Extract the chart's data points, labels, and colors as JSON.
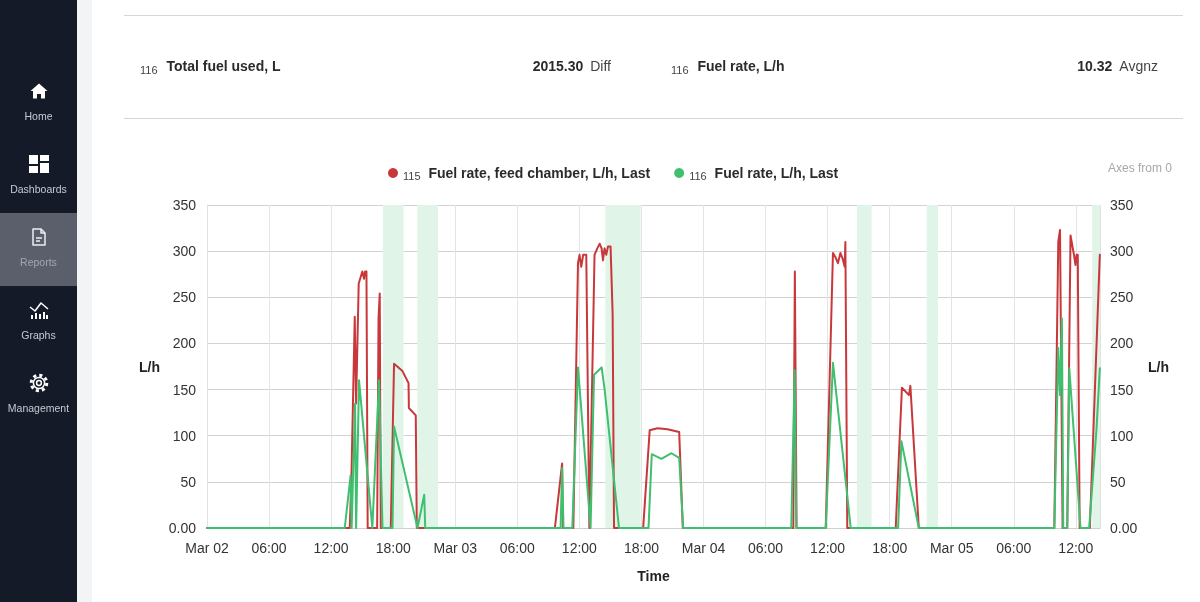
{
  "chart_data": [
    {
      "type": "other",
      "annotations": [
        "Home",
        "Dashboards",
        "Reports",
        "Graphs",
        "Management"
      ]
    },
    {
      "type": "other",
      "annotations": [
        "$_{116}$ Total fuel used, L",
        "2015.30",
        "Diff",
        "$_{116}$ Fuel rate, L/h",
        "10.32",
        "Avgnz"
      ]
    },
    {
      "type": "line",
      "xlabel": "Time",
      "ylabel": "L/h",
      "y2label": "L/h",
      "annotations": [
        "Axes from 0"
      ],
      "xlim": [
        "--03-02T00:00",
        "--03-05T14:20"
      ],
      "xticks": [
        {
          "value": "--03-02T00:00",
          "label": "Mar 02"
        },
        {
          "value": "--03-02T06:00",
          "label": "06:00"
        },
        {
          "value": "--03-02T12:00",
          "label": "12:00"
        },
        {
          "value": "--03-02T18:00",
          "label": "18:00"
        },
        {
          "value": "--03-03T00:00",
          "label": "Mar 03"
        },
        {
          "value": "--03-03T06:00",
          "label": "06:00"
        },
        {
          "value": "--03-03T12:00",
          "label": "12:00"
        },
        {
          "value": "--03-03T18:00",
          "label": "18:00"
        },
        {
          "value": "--03-04T00:00",
          "label": "Mar 04"
        },
        {
          "value": "--03-04T06:00",
          "label": "06:00"
        },
        {
          "value": "--03-04T12:00",
          "label": "12:00"
        },
        {
          "value": "--03-04T18:00",
          "label": "18:00"
        },
        {
          "value": "--03-05T00:00",
          "label": "Mar 05"
        },
        {
          "value": "--03-05T06:00",
          "label": "06:00"
        },
        {
          "value": "--03-05T12:00",
          "label": "12:00"
        }
      ],
      "ylim": [
        0,
        350
      ],
      "yticks": [
        {
          "value": 0,
          "label": "0.00"
        },
        50,
        100,
        150,
        200,
        250,
        300,
        350
      ],
      "y2lim": [
        0,
        350
      ],
      "y2ticks": [
        {
          "value": 0,
          "label": "0.00"
        },
        50,
        100,
        150,
        200,
        250,
        300,
        350
      ],
      "grid": true,
      "legend": "top",
      "bands": [
        {
          "axis": "x",
          "from": "--03-02T17:00",
          "to": "--03-02T19:00",
          "color": "#e0f5e8"
        },
        {
          "axis": "x",
          "from": "--03-02T20:20",
          "to": "--03-02T22:20",
          "color": "#e0f5e8"
        },
        {
          "axis": "x",
          "from": "--03-03T14:30",
          "to": "--03-03T17:55",
          "color": "#e0f5e8"
        },
        {
          "axis": "x",
          "from": "--03-04T14:50",
          "to": "--03-04T16:15",
          "color": "#e0f5e8"
        },
        {
          "axis": "x",
          "from": "--03-04T21:35",
          "to": "--03-04T22:40",
          "color": "#e0f5e8"
        },
        {
          "axis": "x",
          "from": "--03-05T13:35",
          "to": "--03-05T14:20",
          "color": "#e0f5e8"
        }
      ],
      "series": [
        {
          "name": "$_{115}$ Fuel rate, feed chamber, L/h, Last",
          "color": "#c8383b",
          "x": [
            "--03-02T00:00",
            "--03-02T13:48",
            "--03-02T13:58",
            "--03-02T14:17",
            "--03-02T14:25",
            "--03-02T14:40",
            "--03-02T15:01",
            "--03-02T15:11",
            "--03-02T15:17",
            "--03-02T15:25",
            "--03-02T15:32",
            "--03-02T16:27",
            "--03-02T16:35",
            "--03-02T16:42",
            "--03-02T16:48",
            "--03-02T17:46",
            "--03-02T18:05",
            "--03-02T18:54",
            "--03-02T19:29",
            "--03-02T19:31",
            "--03-02T20:11",
            "--03-02T20:17",
            "--03-03T09:38",
            "--03-03T10:20",
            "--03-03T10:24",
            "--03-03T11:25",
            "--03-03T11:52",
            "--03-03T12:01",
            "--03-03T12:11",
            "--03-03T12:22",
            "--03-03T12:40",
            "--03-03T12:58",
            "--03-03T13:28",
            "--03-03T13:44",
            "--03-03T13:58",
            "--03-03T14:09",
            "--03-03T14:17",
            "--03-03T14:26",
            "--03-03T14:36",
            "--03-03T14:46",
            "--03-03T15:01",
            "--03-03T15:13",
            "--03-03T15:21",
            "--03-03T18:10",
            "--03-03T18:48",
            "--03-03T19:33",
            "--03-03T20:31",
            "--03-03T21:39",
            "--03-03T22:00",
            "--03-04T08:41",
            "--03-04T08:50",
            "--03-04T09:00",
            "--03-04T11:49",
            "--03-04T12:31",
            "--03-04T12:44",
            "--03-04T13:00",
            "--03-04T13:14",
            "--03-04T13:27",
            "--03-04T13:39",
            "--03-04T13:43",
            "--03-04T13:54",
            "--03-04T18:35",
            "--03-04T19:11",
            "--03-04T19:52",
            "--03-04T20:00",
            "--03-04T20:49",
            "--03-05T09:55",
            "--03-05T10:18",
            "--03-05T10:28",
            "--03-05T10:43",
            "--03-05T11:10",
            "--03-05T11:29",
            "--03-05T11:49",
            "--03-05T11:58",
            "--03-05T12:04",
            "--03-05T12:11",
            "--03-05T12:22",
            "--03-05T13:21",
            "--03-05T14:19"
          ],
          "values": [
            0,
            0,
            57,
            229,
            135,
            265,
            278,
            270,
            278,
            278,
            0,
            0,
            227,
            254,
            0,
            0,
            178,
            170,
            157,
            130,
            122,
            0,
            0,
            70,
            0,
            0,
            287,
            296,
            283,
            296,
            296,
            0,
            296,
            303,
            308,
            303,
            290,
            303,
            296,
            305,
            305,
            231,
            0,
            0,
            106,
            108,
            107,
            104,
            0,
            0,
            278,
            0,
            0,
            298,
            294,
            287,
            298,
            292,
            283,
            310,
            0,
            0,
            152,
            144,
            154,
            0,
            0,
            310,
            323,
            0,
            0,
            317,
            296,
            285,
            296,
            296,
            0,
            0,
            296
          ]
        },
        {
          "name": "$_{116}$ Fuel rate, L/h, Last",
          "color": "#3fbf6f",
          "x": [
            "--03-02T00:00",
            "--03-02T13:19",
            "--03-02T13:53",
            "--03-02T13:59",
            "--03-02T14:19",
            "--03-02T14:25",
            "--03-02T14:42",
            "--03-02T15:59",
            "--03-02T16:38",
            "--03-02T16:58",
            "--03-02T17:56",
            "--03-02T18:05",
            "--03-02T20:21",
            "--03-02T21:00",
            "--03-02T21:06",
            "--03-03T10:11",
            "--03-03T10:20",
            "--03-03T10:28",
            "--03-03T11:19",
            "--03-03T11:52",
            "--03-03T13:05",
            "--03-03T13:25",
            "--03-03T14:09",
            "--03-03T14:26",
            "--03-03T15:50",
            "--03-03T18:41",
            "--03-03T19:00",
            "--03-03T19:56",
            "--03-03T20:54",
            "--03-03T21:39",
            "--03-03T22:02",
            "--03-04T08:29",
            "--03-04T08:49",
            "--03-04T08:58",
            "--03-04T11:49",
            "--03-04T12:31",
            "--03-04T14:14",
            "--03-04T18:49",
            "--03-04T19:08",
            "--03-04T20:49",
            "--03-05T09:55",
            "--03-05T10:18",
            "--03-05T10:28",
            "--03-05T10:39",
            "--03-05T10:47",
            "--03-05T11:10",
            "--03-05T11:22",
            "--03-05T12:27",
            "--03-05T13:17",
            "--03-05T14:00",
            "--03-05T14:19"
          ],
          "values": [
            0,
            0,
            57,
            0,
            135,
            0,
            160,
            0,
            160,
            0,
            0,
            110,
            0,
            36,
            0,
            0,
            65,
            0,
            0,
            174,
            0,
            166,
            174,
            151,
            0,
            0,
            80,
            75,
            81,
            76,
            0,
            0,
            171,
            0,
            0,
            179,
            0,
            0,
            94,
            0,
            0,
            195,
            144,
            227,
            0,
            0,
            173,
            0,
            0,
            108,
            173
          ]
        }
      ]
    }
  ]
}
